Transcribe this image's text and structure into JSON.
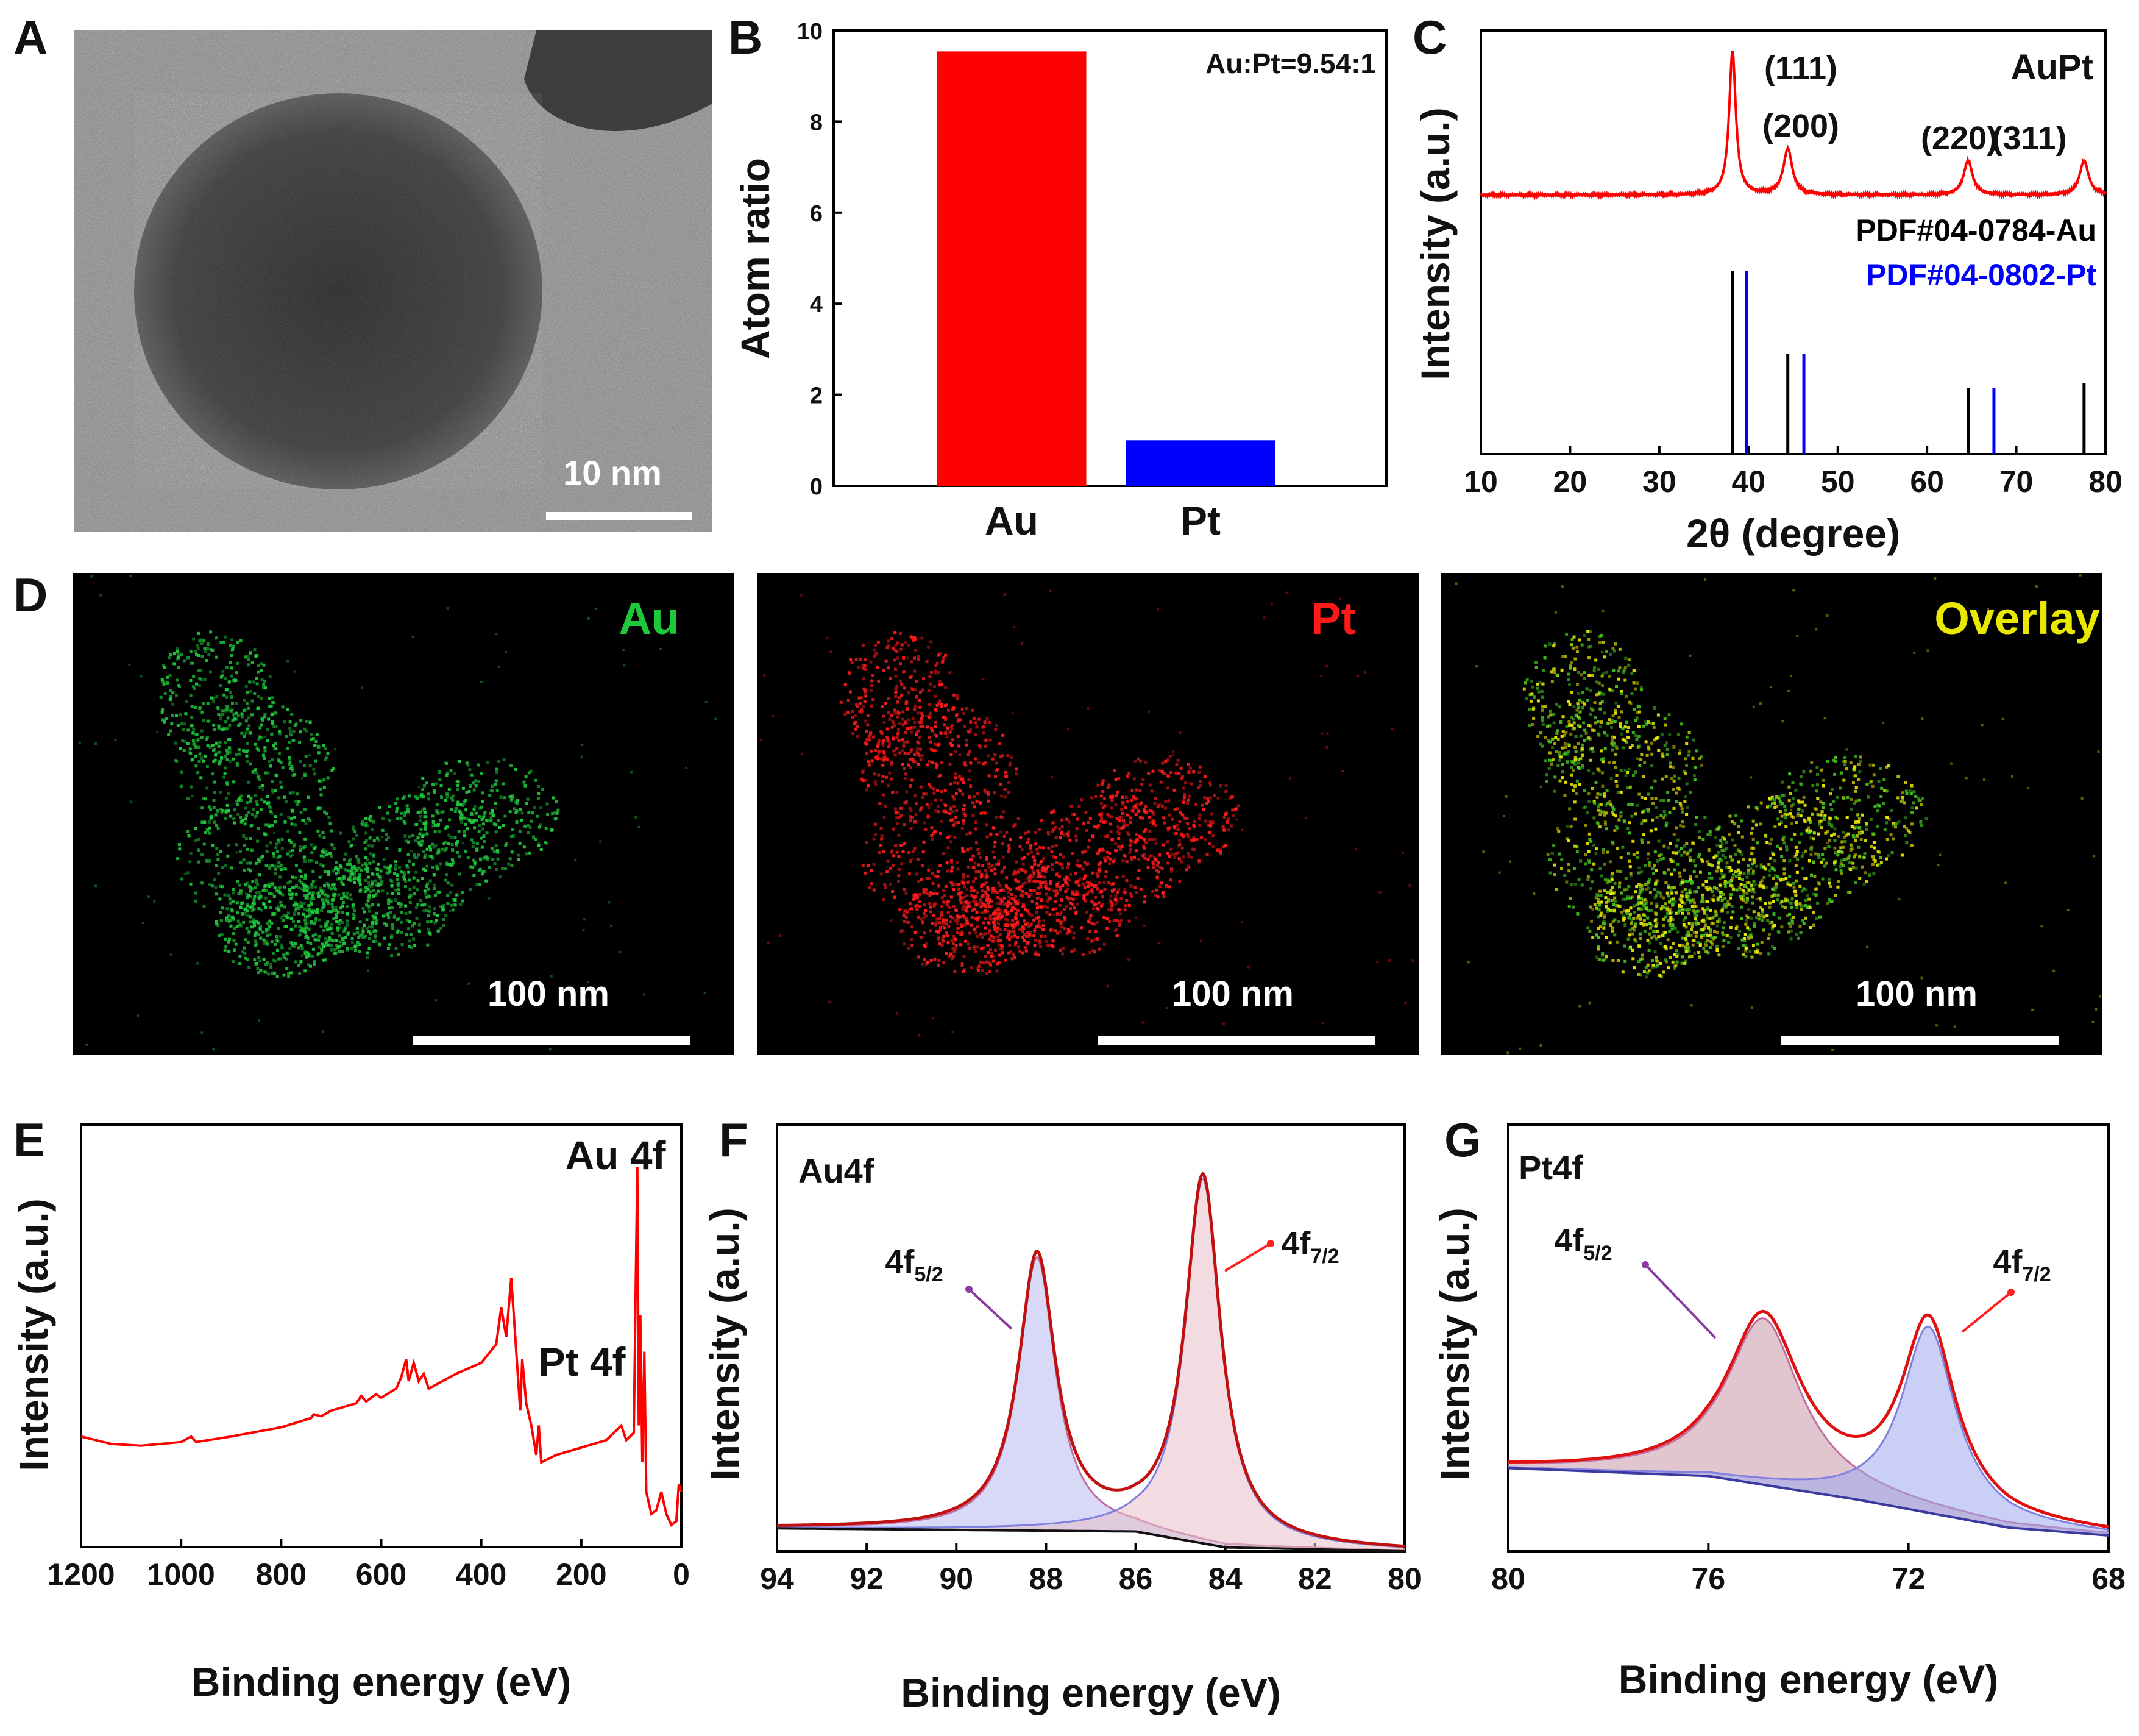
{
  "panel_labels": [
    "A",
    "B",
    "C",
    "D",
    "E",
    "F",
    "G"
  ],
  "tem": {
    "scale_label": "10 nm"
  },
  "chart_data": [
    {
      "panel": "B",
      "type": "bar",
      "categories": [
        "Au",
        "Pt"
      ],
      "values": [
        9.54,
        1
      ],
      "colors": [
        "#ff0000",
        "#0000ff"
      ],
      "ylabel": "Atom ratio",
      "ylim": [
        0,
        10
      ],
      "yticks": [
        0,
        2,
        4,
        6,
        8,
        10
      ],
      "annotation": "Au:Pt=9.54:1"
    },
    {
      "panel": "C",
      "type": "line",
      "xlabel": "2θ (degree)",
      "ylabel": "Intensity (a.u.)",
      "xlim": [
        10,
        80
      ],
      "xticks": [
        10,
        20,
        30,
        40,
        50,
        60,
        70,
        80
      ],
      "sample_label": "AuPt",
      "peaks": [
        {
          "x": 38.2,
          "h": 1.0,
          "w": 0.45,
          "label": "(111)"
        },
        {
          "x": 44.4,
          "h": 0.32,
          "w": 0.6,
          "label": "(200)"
        },
        {
          "x": 64.6,
          "h": 0.24,
          "w": 0.6,
          "label": "(220)"
        },
        {
          "x": 77.6,
          "h": 0.24,
          "w": 0.6,
          "label": "(311)"
        }
      ],
      "references": [
        {
          "name": "PDF#04-0784-Au",
          "color": "#000000",
          "lines": [
            {
              "x": 38.2,
              "h": 1.0
            },
            {
              "x": 44.4,
              "h": 0.55
            },
            {
              "x": 64.6,
              "h": 0.36
            },
            {
              "x": 77.6,
              "h": 0.39
            }
          ]
        },
        {
          "name": "PDF#04-0802-Pt",
          "color": "#0000ff",
          "lines": [
            {
              "x": 39.8,
              "h": 1.0
            },
            {
              "x": 46.2,
              "h": 0.55
            },
            {
              "x": 67.5,
              "h": 0.36
            }
          ]
        }
      ]
    },
    {
      "panel": "E",
      "type": "line",
      "xlabel": "Binding energy (eV)",
      "ylabel": "Intensity (a.u.)",
      "xlim": [
        1200,
        0
      ],
      "xticks": [
        1200,
        1000,
        800,
        600,
        400,
        200,
        0
      ],
      "annotations": [
        "Au 4f",
        "Pt 4f"
      ],
      "series": [
        {
          "color": "#ff0000",
          "points": [
            [
              1200,
              0.27
            ],
            [
              1140,
              0.25
            ],
            [
              1080,
              0.245
            ],
            [
              1000,
              0.255
            ],
            [
              980,
              0.27
            ],
            [
              970,
              0.255
            ],
            [
              900,
              0.27
            ],
            [
              800,
              0.295
            ],
            [
              740,
              0.32
            ],
            [
              735,
              0.33
            ],
            [
              720,
              0.325
            ],
            [
              700,
              0.34
            ],
            [
              650,
              0.36
            ],
            [
              640,
              0.38
            ],
            [
              630,
              0.365
            ],
            [
              610,
              0.385
            ],
            [
              600,
              0.375
            ],
            [
              570,
              0.4
            ],
            [
              560,
              0.43
            ],
            [
              550,
              0.48
            ],
            [
              545,
              0.42
            ],
            [
              535,
              0.47
            ],
            [
              525,
              0.42
            ],
            [
              515,
              0.44
            ],
            [
              505,
              0.4
            ],
            [
              450,
              0.44
            ],
            [
              400,
              0.47
            ],
            [
              370,
              0.52
            ],
            [
              360,
              0.62
            ],
            [
              350,
              0.54
            ],
            [
              340,
              0.7
            ],
            [
              333,
              0.56
            ],
            [
              322,
              0.34
            ],
            [
              318,
              0.48
            ],
            [
              310,
              0.36
            ],
            [
              300,
              0.3
            ],
            [
              290,
              0.22
            ],
            [
              285,
              0.3
            ],
            [
              280,
              0.2
            ],
            [
              250,
              0.22
            ],
            [
              200,
              0.24
            ],
            [
              150,
              0.26
            ],
            [
              120,
              0.3
            ],
            [
              110,
              0.26
            ],
            [
              95,
              0.28
            ],
            [
              88,
              1.0
            ],
            [
              85,
              0.3
            ],
            [
              82,
              0.6
            ],
            [
              78,
              0.2
            ],
            [
              74,
              0.5
            ],
            [
              70,
              0.12
            ],
            [
              60,
              0.06
            ],
            [
              50,
              0.07
            ],
            [
              40,
              0.12
            ],
            [
              30,
              0.06
            ],
            [
              20,
              0.03
            ],
            [
              10,
              0.04
            ],
            [
              5,
              0.14
            ],
            [
              0,
              0.12
            ]
          ]
        }
      ]
    },
    {
      "panel": "F",
      "type": "line",
      "xlabel": "Binding energy (eV)",
      "ylabel": "Intensity (a.u.)",
      "xlim": [
        94,
        80
      ],
      "xticks": [
        94,
        92,
        90,
        88,
        86,
        84,
        82,
        80
      ],
      "title": "Au4f",
      "peaks": [
        {
          "x": 88.2,
          "h": 0.69,
          "w": 0.5,
          "label": "4f5/2",
          "fill": "#b8b8f0"
        },
        {
          "x": 84.5,
          "h": 0.92,
          "w": 0.48,
          "label": "4f7/2",
          "fill": "#e8c0c8"
        }
      ],
      "background": [
        [
          94,
          0.058
        ],
        [
          86,
          0.05
        ],
        [
          84,
          0.01
        ],
        [
          80,
          0.0
        ]
      ]
    },
    {
      "panel": "G",
      "type": "line",
      "xlabel": "Binding energy (eV)",
      "ylabel": "Intensity (a.u.)",
      "xlim": [
        80,
        68
      ],
      "xticks": [
        80,
        76,
        72,
        68
      ],
      "title": "Pt4f",
      "peaks": [
        {
          "x": 74.9,
          "h": 0.42,
          "w": 0.9,
          "label": "4f5/2",
          "fill": "#c898a8"
        },
        {
          "x": 71.6,
          "h": 0.47,
          "w": 0.65,
          "label": "4f7/2",
          "fill": "#9ea8ee"
        }
      ],
      "background": [
        [
          80,
          0.21
        ],
        [
          76,
          0.19
        ],
        [
          73,
          0.13
        ],
        [
          70,
          0.06
        ],
        [
          68,
          0.04
        ]
      ]
    }
  ],
  "eds": [
    {
      "label": "Au",
      "color": "#1ec83c",
      "scale_label": "100 nm"
    },
    {
      "label": "Pt",
      "color": "#ff1a1a",
      "scale_label": "100 nm"
    },
    {
      "label": "Overlay",
      "color": "#e8e800",
      "scale_label": "100 nm"
    }
  ]
}
